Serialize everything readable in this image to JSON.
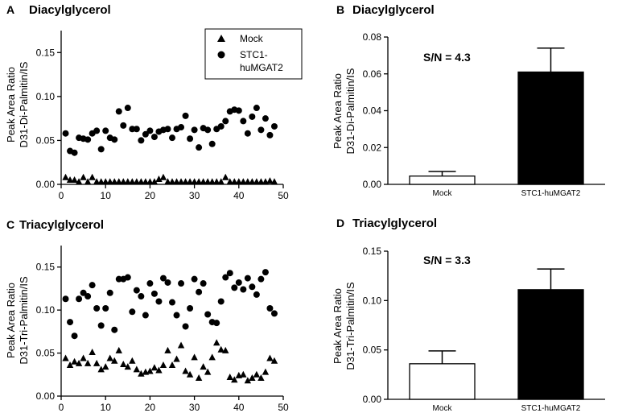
{
  "chart_data": [
    {
      "panel": "A",
      "title": "Diacylglycerol",
      "type": "scatter",
      "ylabel": [
        "Peak Area Ratio",
        "D31-Di-Palmitin/IS"
      ],
      "xlabel": "",
      "xlim": [
        0,
        50
      ],
      "ylim": [
        0,
        0.175
      ],
      "xticks": [
        "0",
        "10",
        "20",
        "30",
        "40",
        "50"
      ],
      "yticks": [
        "0.00",
        "0.05",
        "0.10",
        "0.15"
      ],
      "ytick_values": [
        0,
        0.05,
        0.1,
        0.15
      ],
      "xtick_values": [
        0,
        10,
        20,
        30,
        40,
        50
      ],
      "legend": {
        "placement": "top-right",
        "entries": [
          "Mock",
          "STC1-\nhuMGAT2"
        ]
      },
      "series": [
        {
          "name": "Mock",
          "marker": "triangle",
          "x": [
            1,
            2,
            3,
            4,
            5,
            6,
            7,
            8,
            9,
            10,
            11,
            12,
            13,
            14,
            15,
            16,
            17,
            18,
            19,
            20,
            21,
            22,
            23,
            24,
            25,
            26,
            27,
            28,
            29,
            30,
            31,
            32,
            33,
            34,
            35,
            36,
            37,
            38,
            39,
            40,
            41,
            42,
            43,
            44,
            45,
            46,
            47,
            48
          ],
          "y": [
            0.008,
            0.005,
            0.005,
            0.003,
            0.008,
            0.003,
            0.008,
            0.003,
            0.003,
            0.003,
            0.003,
            0.003,
            0.003,
            0.003,
            0.003,
            0.003,
            0.003,
            0.003,
            0.003,
            0.003,
            0.003,
            0.006,
            0.008,
            0.003,
            0.003,
            0.003,
            0.003,
            0.003,
            0.003,
            0.003,
            0.003,
            0.003,
            0.003,
            0.003,
            0.003,
            0.003,
            0.008,
            0.003,
            0.003,
            0.003,
            0.003,
            0.003,
            0.003,
            0.003,
            0.003,
            0.003,
            0.004,
            0.003
          ]
        },
        {
          "name": "STC1-huMGAT2",
          "marker": "circle",
          "x": [
            1,
            2,
            3,
            4,
            5,
            6,
            7,
            8,
            9,
            10,
            11,
            12,
            13,
            14,
            15,
            16,
            17,
            18,
            19,
            20,
            21,
            22,
            23,
            24,
            25,
            26,
            27,
            28,
            29,
            30,
            31,
            32,
            33,
            34,
            35,
            36,
            37,
            38,
            39,
            40,
            41,
            42,
            43,
            44,
            45,
            46,
            47,
            48
          ],
          "y": [
            0.058,
            0.038,
            0.036,
            0.053,
            0.052,
            0.051,
            0.058,
            0.061,
            0.04,
            0.061,
            0.053,
            0.051,
            0.083,
            0.067,
            0.087,
            0.063,
            0.063,
            0.05,
            0.057,
            0.061,
            0.054,
            0.06,
            0.062,
            0.063,
            0.053,
            0.063,
            0.065,
            0.078,
            0.052,
            0.062,
            0.042,
            0.064,
            0.062,
            0.046,
            0.063,
            0.066,
            0.072,
            0.083,
            0.085,
            0.084,
            0.072,
            0.058,
            0.077,
            0.087,
            0.062,
            0.075,
            0.056,
            0.066
          ]
        }
      ]
    },
    {
      "panel": "B",
      "title": "Diacylglycerol",
      "type": "bar",
      "ylabel": [
        "Peak Area Ratio",
        "D31-Di-Palmitin/IS"
      ],
      "xlabel": "",
      "categories": [
        "Mock",
        "STC1-huMGAT2"
      ],
      "values": [
        0.0045,
        0.061
      ],
      "errors": [
        0.0025,
        0.013
      ],
      "colors": [
        "#ffffff",
        "#000000"
      ],
      "ylim": [
        0,
        0.08
      ],
      "yticks": [
        "0.00",
        "0.02",
        "0.04",
        "0.06",
        "0.08"
      ],
      "ytick_values": [
        0,
        0.02,
        0.04,
        0.06,
        0.08
      ],
      "annotation": "S/N = 4.3"
    },
    {
      "panel": "C",
      "title": "Triacylglycerol",
      "type": "scatter",
      "ylabel": [
        "Peak Area Ratio",
        "D31-Tri-Palmitin/IS"
      ],
      "xlabel": "",
      "xlim": [
        0,
        50
      ],
      "ylim": [
        0,
        0.175
      ],
      "xticks": [
        "0",
        "10",
        "20",
        "30",
        "40",
        "50"
      ],
      "yticks": [
        "0.00",
        "0.05",
        "0.10",
        "0.15"
      ],
      "ytick_values": [
        0,
        0.05,
        0.1,
        0.15
      ],
      "xtick_values": [
        0,
        10,
        20,
        30,
        40,
        50
      ],
      "series": [
        {
          "name": "Mock",
          "marker": "triangle",
          "x": [
            1,
            2,
            3,
            4,
            5,
            6,
            7,
            8,
            9,
            10,
            11,
            12,
            13,
            14,
            15,
            16,
            17,
            18,
            19,
            20,
            21,
            22,
            23,
            24,
            25,
            26,
            27,
            28,
            29,
            30,
            31,
            32,
            33,
            34,
            35,
            36,
            37,
            38,
            39,
            40,
            41,
            42,
            43,
            44,
            45,
            46,
            47,
            48
          ],
          "y": [
            0.044,
            0.036,
            0.04,
            0.038,
            0.044,
            0.038,
            0.051,
            0.038,
            0.031,
            0.034,
            0.044,
            0.041,
            0.053,
            0.037,
            0.034,
            0.041,
            0.031,
            0.026,
            0.028,
            0.029,
            0.033,
            0.03,
            0.036,
            0.053,
            0.036,
            0.043,
            0.059,
            0.029,
            0.025,
            0.045,
            0.021,
            0.034,
            0.028,
            0.045,
            0.062,
            0.054,
            0.053,
            0.022,
            0.019,
            0.024,
            0.025,
            0.018,
            0.021,
            0.025,
            0.021,
            0.028,
            0.044,
            0.041
          ]
        },
        {
          "name": "STC1-huMGAT2",
          "marker": "circle",
          "x": [
            1,
            2,
            3,
            4,
            5,
            6,
            7,
            8,
            9,
            10,
            11,
            12,
            13,
            14,
            15,
            16,
            17,
            18,
            19,
            20,
            21,
            22,
            23,
            24,
            25,
            26,
            27,
            28,
            29,
            30,
            31,
            32,
            33,
            34,
            35,
            36,
            37,
            38,
            39,
            40,
            41,
            42,
            43,
            44,
            45,
            46,
            47,
            48
          ],
          "y": [
            0.113,
            0.086,
            0.07,
            0.113,
            0.12,
            0.116,
            0.129,
            0.102,
            0.082,
            0.102,
            0.12,
            0.077,
            0.136,
            0.136,
            0.138,
            0.098,
            0.123,
            0.116,
            0.094,
            0.131,
            0.119,
            0.11,
            0.137,
            0.132,
            0.109,
            0.094,
            0.131,
            0.081,
            0.102,
            0.136,
            0.121,
            0.131,
            0.095,
            0.086,
            0.085,
            0.11,
            0.138,
            0.143,
            0.126,
            0.132,
            0.124,
            0.137,
            0.127,
            0.118,
            0.136,
            0.144,
            0.102,
            0.096
          ]
        }
      ]
    },
    {
      "panel": "D",
      "title": "Triacylglycerol",
      "type": "bar",
      "ylabel": [
        "Peak Area Ratio",
        "D31-Tri-Palmitin/IS"
      ],
      "xlabel": "",
      "categories": [
        "Mock",
        "STC1-huMGAT2"
      ],
      "values": [
        0.036,
        0.111
      ],
      "errors": [
        0.013,
        0.021
      ],
      "colors": [
        "#ffffff",
        "#000000"
      ],
      "ylim": [
        0,
        0.15
      ],
      "yticks": [
        "0.00",
        "0.05",
        "0.10",
        "0.15"
      ],
      "ytick_values": [
        0,
        0.05,
        0.1,
        0.15
      ],
      "annotation": "S/N = 3.3"
    }
  ]
}
